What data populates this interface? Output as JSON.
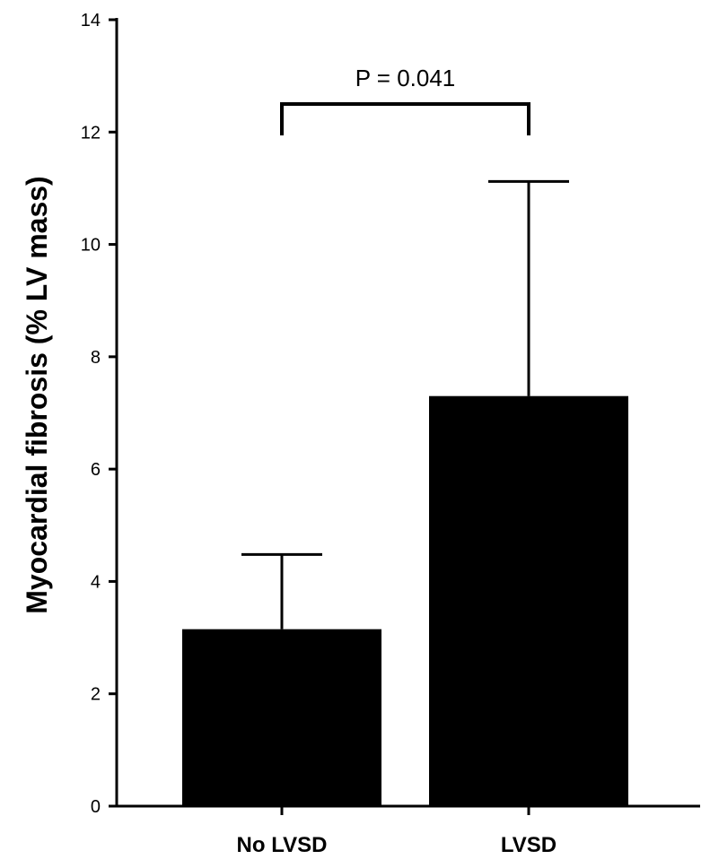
{
  "chart_data": {
    "type": "bar",
    "title": "",
    "xlabel": "",
    "ylabel": "Myocardial fibrosis (% LV mass)",
    "categories": [
      "No LVSD",
      "LVSD"
    ],
    "values": [
      3.15,
      7.3
    ],
    "error_upper": [
      4.48,
      11.12
    ],
    "ylim": [
      0,
      14
    ],
    "yticks": [
      0,
      2,
      4,
      6,
      8,
      10,
      12,
      14
    ],
    "grid": false,
    "legend": "none",
    "bar_color": "#000000",
    "annotation": {
      "text": "P = 0.041",
      "between": [
        "No LVSD",
        "LVSD"
      ],
      "y": 12.5
    }
  }
}
